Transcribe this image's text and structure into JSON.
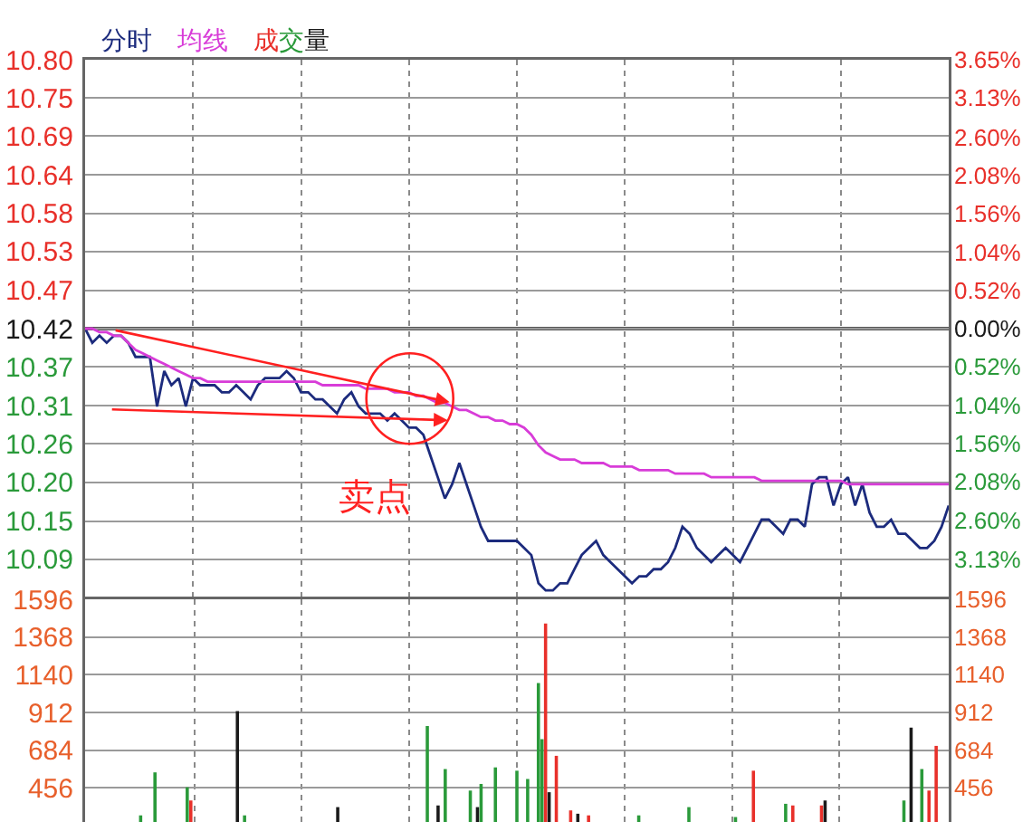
{
  "chart_data": [
    {
      "type": "line",
      "categories": [
        null,
        null,
        null,
        null,
        null,
        null,
        null,
        null,
        null,
        null,
        null,
        null,
        null,
        null,
        null,
        null,
        null,
        null,
        null,
        null,
        null,
        null,
        null,
        null,
        null,
        null,
        null,
        null,
        null,
        null,
        null,
        null,
        null,
        null,
        null,
        null,
        null,
        null,
        null,
        null,
        null,
        null,
        null,
        null,
        null,
        null,
        null,
        null,
        null,
        null,
        null,
        null,
        null,
        null,
        null,
        null,
        null,
        null,
        null,
        null,
        null,
        null,
        null,
        null,
        null,
        null,
        null,
        null,
        null,
        null,
        null,
        null,
        null,
        null,
        null,
        null,
        null,
        null,
        null,
        null,
        null,
        null,
        null,
        null,
        null,
        null,
        null,
        null,
        null,
        null,
        null,
        null,
        null,
        null,
        null,
        null,
        null,
        null,
        null,
        null,
        null,
        null,
        null,
        null,
        null,
        null,
        null,
        null,
        null,
        null,
        null,
        null,
        null,
        null,
        null,
        null,
        null,
        null,
        null,
        null,
        null
      ],
      "series": [
        {
          "name": "分时",
          "color": "#1c2b7d",
          "values": [
            10.42,
            10.4,
            10.41,
            10.4,
            10.41,
            10.41,
            10.4,
            10.38,
            10.38,
            10.38,
            10.31,
            10.36,
            10.34,
            10.35,
            10.31,
            10.35,
            10.34,
            10.34,
            10.34,
            10.33,
            10.33,
            10.34,
            10.33,
            10.32,
            10.34,
            10.35,
            10.35,
            10.35,
            10.36,
            10.35,
            10.33,
            10.33,
            10.32,
            10.32,
            10.31,
            10.3,
            10.32,
            10.33,
            10.31,
            10.3,
            10.3,
            10.3,
            10.29,
            10.3,
            10.29,
            10.28,
            10.28,
            10.27,
            10.24,
            10.21,
            10.18,
            10.2,
            10.23,
            10.2,
            10.17,
            10.14,
            10.12,
            10.12,
            10.12,
            10.12,
            10.12,
            10.11,
            10.1,
            10.06,
            10.05,
            10.05,
            10.06,
            10.06,
            10.08,
            10.1,
            10.11,
            10.12,
            10.1,
            10.09,
            10.08,
            10.07,
            10.06,
            10.07,
            10.07,
            10.08,
            10.08,
            10.09,
            10.11,
            10.14,
            10.13,
            10.11,
            10.1,
            10.09,
            10.1,
            10.11,
            10.1,
            10.09,
            10.11,
            10.13,
            10.15,
            10.15,
            10.14,
            10.13,
            10.15,
            10.15,
            10.14,
            10.2,
            10.21,
            10.21,
            10.17,
            10.2,
            10.21,
            10.17,
            10.2,
            10.16,
            10.14,
            10.14,
            10.15,
            10.13,
            10.13,
            10.12,
            10.11,
            10.11,
            10.12,
            10.14,
            10.17
          ]
        },
        {
          "name": "均线",
          "color": "#d83cd8",
          "values": [
            10.42,
            10.42,
            10.415,
            10.415,
            10.41,
            10.41,
            10.4,
            10.39,
            10.385,
            10.38,
            10.375,
            10.37,
            10.365,
            10.36,
            10.355,
            10.35,
            10.35,
            10.345,
            10.345,
            10.345,
            10.345,
            10.345,
            10.345,
            10.345,
            10.345,
            10.345,
            10.345,
            10.345,
            10.345,
            10.345,
            10.345,
            10.345,
            10.345,
            10.34,
            10.34,
            10.34,
            10.34,
            10.34,
            10.34,
            10.335,
            10.335,
            10.335,
            10.335,
            10.33,
            10.33,
            10.33,
            10.325,
            10.325,
            10.32,
            10.315,
            10.315,
            10.31,
            10.305,
            10.305,
            10.3,
            10.295,
            10.295,
            10.29,
            10.29,
            10.285,
            10.285,
            10.28,
            10.27,
            10.255,
            10.245,
            10.24,
            10.235,
            10.235,
            10.235,
            10.23,
            10.23,
            10.23,
            10.23,
            10.225,
            10.225,
            10.225,
            10.225,
            10.22,
            10.22,
            10.22,
            10.22,
            10.22,
            10.215,
            10.215,
            10.215,
            10.215,
            10.215,
            10.21,
            10.21,
            10.21,
            10.21,
            10.21,
            10.21,
            10.21,
            10.205,
            10.205,
            10.205,
            10.205,
            10.205,
            10.205,
            10.205,
            10.205,
            10.205,
            10.205,
            10.205,
            10.205,
            10.2,
            10.2,
            10.2,
            10.2,
            10.2,
            10.2,
            10.2,
            10.2,
            10.2,
            10.2,
            10.2,
            10.2,
            10.2,
            10.2,
            10.2
          ]
        }
      ],
      "ylim": [
        10.04,
        10.8
      ],
      "yticks": [
        {
          "value": 10.8,
          "label": "10.80"
        },
        {
          "value": 10.746,
          "label": "10.75"
        },
        {
          "value": 10.692,
          "label": "10.69"
        },
        {
          "value": 10.637,
          "label": "10.64"
        },
        {
          "value": 10.583,
          "label": "10.58"
        },
        {
          "value": 10.529,
          "label": "10.53"
        },
        {
          "value": 10.474,
          "label": "10.47"
        },
        {
          "value": 10.42,
          "label": "10.42"
        },
        {
          "value": 10.366,
          "label": "10.37"
        },
        {
          "value": 10.311,
          "label": "10.31"
        },
        {
          "value": 10.257,
          "label": "10.26"
        },
        {
          "value": 10.203,
          "label": "10.20"
        },
        {
          "value": 10.148,
          "label": "10.15"
        },
        {
          "value": 10.094,
          "label": "10.09"
        }
      ],
      "y2lim": [
        -3.65,
        3.65
      ],
      "y2ticks": [
        {
          "value": 3.65,
          "label": "3.65%"
        },
        {
          "value": 3.13,
          "label": "3.13%"
        },
        {
          "value": 2.6,
          "label": "2.60%"
        },
        {
          "value": 2.08,
          "label": "2.08%"
        },
        {
          "value": 1.56,
          "label": "1.56%"
        },
        {
          "value": 1.04,
          "label": "1.04%"
        },
        {
          "value": 0.52,
          "label": "0.52%"
        },
        {
          "value": 0,
          "label": "0.00%"
        },
        {
          "value": -0.52,
          "label": "0.52%"
        },
        {
          "value": -1.04,
          "label": "1.04%"
        },
        {
          "value": -1.56,
          "label": "1.56%"
        },
        {
          "value": -2.08,
          "label": "2.08%"
        },
        {
          "value": -2.6,
          "label": "2.60%"
        },
        {
          "value": -3.13,
          "label": "3.13%"
        }
      ],
      "ref_lines": [
        {
          "axis": "y",
          "value": 10.42,
          "color": "#555555"
        }
      ],
      "annotations": [
        "卖点"
      ],
      "grid": true,
      "tick_labels": "y"
    },
    {
      "type": "bar",
      "categories": [
        null,
        null,
        null,
        null,
        null,
        null,
        null,
        null,
        null,
        null,
        null,
        null,
        null,
        null,
        null,
        null,
        null,
        null,
        null,
        null,
        null,
        null,
        null,
        null,
        null,
        null,
        null,
        null,
        null,
        null,
        null,
        null,
        null,
        null,
        null,
        null,
        null,
        null,
        null,
        null,
        null,
        null,
        null,
        null,
        null,
        null,
        null,
        null,
        null,
        null,
        null,
        null,
        null,
        null,
        null,
        null,
        null,
        null,
        null,
        null,
        null,
        null,
        null,
        null,
        null,
        null,
        null,
        null,
        null,
        null,
        null,
        null,
        null,
        null,
        null,
        null,
        null,
        null,
        null,
        null,
        null,
        null,
        null,
        null,
        null,
        null,
        null,
        null,
        null,
        null,
        null,
        null,
        null,
        null,
        null,
        null,
        null,
        null,
        null,
        null,
        null,
        null,
        null,
        null,
        null,
        null,
        null,
        null,
        null,
        null,
        null,
        null,
        null,
        null,
        null,
        null,
        null,
        null,
        null,
        null,
        null,
        null,
        null,
        null,
        null,
        null,
        null,
        null,
        null,
        null,
        null,
        null,
        null,
        null,
        null,
        null,
        null,
        null,
        null,
        null,
        null,
        null,
        null,
        null,
        null,
        null,
        null,
        null,
        null,
        null,
        null,
        null,
        null,
        null,
        null,
        null,
        null,
        null,
        null,
        null,
        null,
        null,
        null,
        null,
        null,
        null,
        null,
        null,
        null,
        null,
        null,
        null,
        null,
        null,
        null,
        null,
        null,
        null,
        null,
        null,
        null,
        null,
        null,
        null,
        null,
        null,
        null,
        null,
        null,
        null,
        null,
        null,
        null,
        null,
        null,
        null,
        null,
        null,
        null,
        null,
        null,
        null,
        null,
        null,
        null,
        null,
        null,
        null,
        null,
        null,
        null,
        null,
        null,
        null,
        null,
        null,
        null,
        null,
        null,
        null,
        null,
        null,
        null,
        null,
        null,
        null,
        null,
        null,
        null,
        null,
        null,
        null,
        null,
        null,
        null,
        null,
        null,
        null,
        null,
        null,
        null
      ],
      "series": [
        {
          "name": "成交量",
          "values": [
            null,
            null,
            null,
            null,
            null,
            null,
            null,
            null,
            null,
            null,
            null,
            null,
            null,
            null,
            null,
            290,
            null,
            null,
            null,
            550,
            null,
            null,
            null,
            null,
            null,
            null,
            null,
            null,
            460,
            380,
            null,
            null,
            null,
            null,
            null,
            null,
            null,
            null,
            null,
            null,
            null,
            null,
            920,
            null,
            290,
            null,
            null,
            null,
            null,
            null,
            null,
            null,
            null,
            null,
            null,
            null,
            null,
            null,
            null,
            null,
            null,
            null,
            null,
            null,
            null,
            null,
            null,
            null,
            null,
            null,
            340,
            null,
            null,
            null,
            null,
            null,
            null,
            null,
            null,
            null,
            null,
            null,
            null,
            null,
            null,
            null,
            null,
            null,
            null,
            null,
            null,
            null,
            null,
            null,
            null,
            830,
            null,
            null,
            350,
            null,
            570,
            null,
            null,
            null,
            null,
            null,
            null,
            440,
            null,
            340,
            480,
            null,
            null,
            null,
            580,
            null,
            null,
            null,
            null,
            null,
            560,
            null,
            null,
            510,
            null,
            null,
            1090,
            750,
            1450,
            430,
            null,
            650,
            null,
            null,
            null,
            320,
            null,
            300,
            null,
            null,
            290,
            null,
            null,
            null,
            null,
            null,
            null,
            null,
            null,
            null,
            null,
            null,
            null,
            null,
            290,
            null,
            null,
            null,
            null,
            null,
            null,
            null,
            null,
            null,
            null,
            null,
            null,
            null,
            340,
            null,
            null,
            null,
            null,
            null,
            null,
            null,
            null,
            null,
            null,
            null,
            null,
            280,
            null,
            null,
            null,
            null,
            560,
            null,
            null,
            null,
            null,
            null,
            null,
            null,
            null,
            360,
            null,
            350,
            null,
            null,
            null,
            null,
            null,
            null,
            null,
            350,
            380,
            null,
            null,
            null,
            null,
            null,
            null,
            null,
            null,
            null,
            null,
            null,
            null,
            null,
            null,
            null,
            null,
            null,
            null,
            null,
            null,
            null,
            380,
            null,
            820,
            null,
            null,
            570,
            null,
            440,
            null,
            710,
            null,
            null,
            null
          ],
          "colors": [
            null,
            null,
            null,
            null,
            null,
            null,
            null,
            null,
            null,
            null,
            null,
            null,
            null,
            null,
            null,
            "#2a9a3a",
            null,
            null,
            null,
            "#2a9a3a",
            null,
            null,
            null,
            null,
            null,
            null,
            null,
            null,
            "#2a9a3a",
            "#e8302a",
            null,
            null,
            null,
            null,
            null,
            null,
            null,
            null,
            null,
            null,
            null,
            null,
            "#1a1a1a",
            null,
            "#2a9a3a",
            null,
            null,
            null,
            null,
            null,
            null,
            null,
            null,
            null,
            null,
            null,
            null,
            null,
            null,
            null,
            null,
            null,
            null,
            null,
            null,
            null,
            null,
            null,
            null,
            null,
            "#1a1a1a",
            null,
            null,
            null,
            null,
            null,
            null,
            null,
            null,
            null,
            null,
            null,
            null,
            null,
            null,
            null,
            null,
            null,
            null,
            null,
            null,
            null,
            null,
            null,
            null,
            "#2a9a3a",
            null,
            null,
            "#1a1a1a",
            null,
            "#2a9a3a",
            null,
            null,
            null,
            null,
            null,
            null,
            "#2a9a3a",
            null,
            "#1a1a1a",
            "#2a9a3a",
            null,
            null,
            null,
            "#2a9a3a",
            null,
            null,
            null,
            null,
            null,
            "#2a9a3a",
            null,
            null,
            "#2a9a3a",
            null,
            null,
            "#2a9a3a",
            "#2a9a3a",
            "#e8302a",
            "#1a1a1a",
            null,
            "#e8302a",
            null,
            null,
            null,
            "#e8302a",
            null,
            "#1a1a1a",
            null,
            null,
            "#e8302a",
            null,
            null,
            null,
            null,
            null,
            null,
            null,
            null,
            null,
            null,
            null,
            null,
            null,
            "#2a9a3a",
            null,
            null,
            null,
            null,
            null,
            null,
            null,
            null,
            null,
            null,
            null,
            null,
            null,
            "#2a9a3a",
            null,
            null,
            null,
            null,
            null,
            null,
            null,
            null,
            null,
            null,
            null,
            null,
            "#2a9a3a",
            null,
            null,
            null,
            null,
            "#e8302a",
            null,
            null,
            null,
            null,
            null,
            null,
            null,
            null,
            "#2a9a3a",
            null,
            "#e8302a",
            null,
            null,
            null,
            null,
            null,
            null,
            null,
            "#e8302a",
            "#1a1a1a",
            null,
            null,
            null,
            null,
            null,
            null,
            null,
            null,
            null,
            null,
            null,
            null,
            null,
            null,
            null,
            null,
            null,
            null,
            null,
            null,
            null,
            "#2a9a3a",
            null,
            "#1a1a1a",
            null,
            null,
            "#2a9a3a",
            null,
            "#e8302a",
            null,
            "#e8302a",
            null,
            null,
            null
          ]
        }
      ],
      "ylim": [
        250,
        1596
      ],
      "yticks": [
        1596,
        1368,
        1140,
        912,
        684,
        456
      ],
      "y2lim": [
        250,
        1596
      ],
      "y2ticks": [
        1596,
        1368,
        1140,
        912,
        684,
        456
      ],
      "grid": true,
      "tick_labels": "y"
    }
  ]
}
